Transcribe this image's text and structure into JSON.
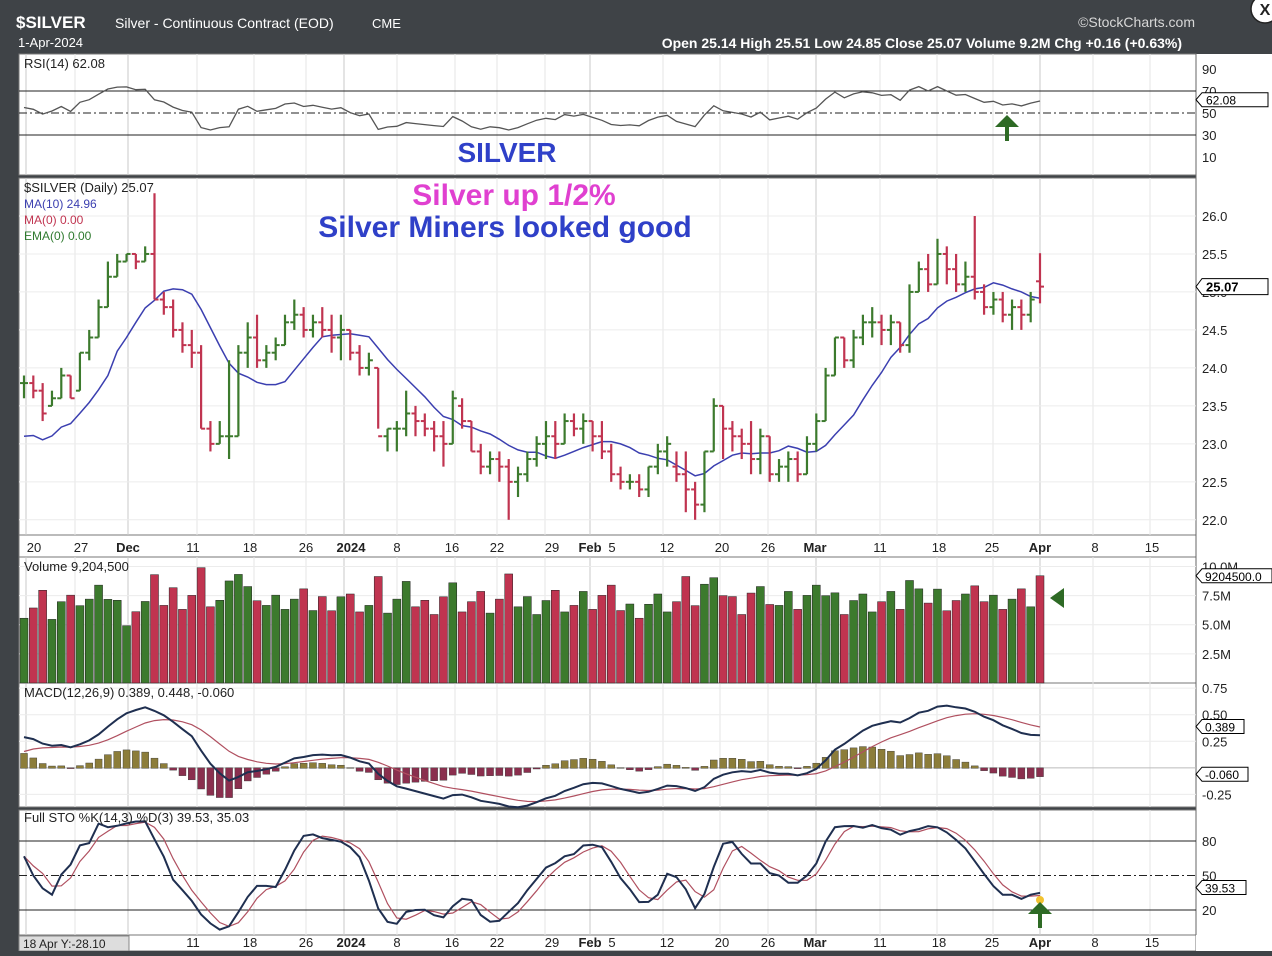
{
  "header": {
    "symbol": "$SILVER",
    "name": "Silver - Continuous Contract (EOD)",
    "exchange": "CME",
    "date": "1-Apr-2024",
    "brand": "©StockCharts.com",
    "ohlc": "Open 25.14  High 25.51  Low 24.85  Close 25.07  Volume 9.2M  Chg +0.16 (+0.63%)",
    "close_button": "X"
  },
  "rsi": {
    "label": "RSI(14) 62.08",
    "value_tag": "62.08",
    "ticks": [
      "90",
      "70",
      "50",
      "30",
      "10"
    ],
    "title_annotation": "SILVER"
  },
  "price": {
    "legend_main": "$SILVER (Daily) 25.07",
    "legend_ma10": "MA(10) 24.96",
    "legend_ma0": "MA(0) 0.00",
    "legend_ema0": "EMA(0) 0.00",
    "annotation_1": "Silver up 1/2%",
    "annotation_2": "Silver Miners looked good",
    "value_tag": "25.07",
    "ticks": [
      "26.0",
      "25.5",
      "25.0",
      "24.5",
      "24.0",
      "23.5",
      "23.0",
      "22.5",
      "22.0"
    ]
  },
  "volume": {
    "label": "Volume 9,204,500",
    "value_tag": "9204500.0",
    "ticks": [
      "10.0M",
      "7.5M",
      "5.0M",
      "2.5M"
    ]
  },
  "macd": {
    "label": "MACD(12,26,9) 0.389, 0.448, -0.060",
    "tag_macd": "0.389",
    "tag_hist": "-0.060",
    "ticks": [
      "0.75",
      "0.50",
      "0.25",
      "-0.25"
    ]
  },
  "sto": {
    "label": "Full STO %K(14,3) %D(3) 39.53, 35.03",
    "value_tag": "39.53",
    "ticks": [
      "80",
      "50",
      "20"
    ],
    "crosshair_readout": "18 Apr Y:-28.10"
  },
  "x_axis": {
    "labels": [
      "20",
      "27",
      "Dec",
      "11",
      "18",
      "26",
      "2024",
      "8",
      "16",
      "22",
      "29",
      "Feb",
      "5",
      "12",
      "20",
      "26",
      "Mar",
      "11",
      "18",
      "25",
      "Apr",
      "8",
      "15"
    ]
  },
  "colors": {
    "up": "#3c7a2d",
    "down": "#c03450",
    "ma": "#3b3fb0",
    "arrow": "#2e6a25",
    "magenta": "#e040d0",
    "blue_text": "#2f40c8"
  },
  "chart_data": {
    "type": "line",
    "symbol": "$SILVER",
    "title": "Silver - Continuous Contract (EOD)",
    "price_ylim": [
      21.8,
      26.5
    ],
    "price_bars": [
      [
        23.8,
        23.9,
        23.6,
        23.8
      ],
      [
        23.8,
        23.9,
        23.6,
        23.7
      ],
      [
        23.7,
        23.8,
        23.3,
        23.4
      ],
      [
        23.5,
        23.7,
        23.5,
        23.6
      ],
      [
        23.6,
        24.0,
        23.6,
        23.9
      ],
      [
        23.9,
        23.9,
        23.6,
        23.6
      ],
      [
        23.7,
        24.2,
        23.7,
        24.2
      ],
      [
        24.2,
        24.5,
        24.1,
        24.4
      ],
      [
        24.4,
        24.9,
        24.4,
        24.8
      ],
      [
        24.8,
        25.4,
        24.8,
        25.2
      ],
      [
        25.2,
        25.5,
        25.2,
        25.4
      ],
      [
        25.4,
        25.5,
        25.4,
        25.5
      ],
      [
        25.5,
        25.5,
        25.3,
        25.4
      ],
      [
        25.4,
        25.6,
        25.4,
        25.5
      ],
      [
        25.5,
        26.3,
        24.9,
        24.9
      ],
      [
        24.9,
        25.0,
        24.7,
        24.8
      ],
      [
        24.8,
        24.9,
        24.4,
        24.5
      ],
      [
        24.5,
        24.6,
        24.2,
        24.3
      ],
      [
        24.3,
        24.5,
        24.0,
        24.2
      ],
      [
        24.2,
        24.3,
        23.2,
        23.2
      ],
      [
        23.2,
        23.3,
        22.9,
        23.0
      ],
      [
        23.0,
        23.3,
        23.0,
        23.1
      ],
      [
        23.1,
        24.1,
        22.8,
        23.1
      ],
      [
        23.1,
        24.3,
        23.1,
        24.2
      ],
      [
        24.2,
        24.6,
        24.0,
        24.4
      ],
      [
        24.4,
        24.7,
        24.0,
        24.1
      ],
      [
        24.1,
        24.3,
        24.0,
        24.2
      ],
      [
        24.2,
        24.4,
        24.1,
        24.3
      ],
      [
        24.3,
        24.7,
        24.3,
        24.6
      ],
      [
        24.6,
        24.9,
        24.5,
        24.7
      ],
      [
        24.7,
        24.8,
        24.4,
        24.5
      ],
      [
        24.5,
        24.7,
        24.4,
        24.6
      ],
      [
        24.6,
        24.8,
        24.4,
        24.5
      ],
      [
        24.5,
        24.7,
        24.2,
        24.4
      ],
      [
        24.4,
        24.7,
        24.1,
        24.5
      ],
      [
        24.5,
        24.5,
        24.1,
        24.2
      ],
      [
        24.2,
        24.3,
        23.9,
        24.0
      ],
      [
        24.0,
        24.2,
        23.9,
        24.1
      ],
      [
        24.0,
        24.0,
        23.2,
        23.1
      ],
      [
        23.1,
        23.2,
        22.9,
        23.2
      ],
      [
        23.2,
        23.3,
        22.9,
        23.2
      ],
      [
        23.2,
        23.7,
        23.1,
        23.4
      ],
      [
        23.4,
        23.5,
        23.1,
        23.3
      ],
      [
        23.3,
        23.4,
        23.1,
        23.2
      ],
      [
        23.2,
        23.3,
        22.9,
        23.1
      ],
      [
        23.1,
        23.3,
        22.7,
        23.0
      ],
      [
        23.0,
        23.7,
        23.0,
        23.6
      ],
      [
        23.5,
        23.6,
        23.2,
        23.3
      ],
      [
        23.3,
        23.3,
        22.9,
        22.9
      ],
      [
        22.9,
        23.0,
        22.6,
        22.7
      ],
      [
        22.7,
        22.9,
        22.6,
        22.8
      ],
      [
        22.8,
        22.9,
        22.5,
        22.7
      ],
      [
        22.7,
        22.8,
        22.0,
        22.5
      ],
      [
        22.5,
        22.7,
        22.3,
        22.6
      ],
      [
        22.6,
        22.9,
        22.5,
        22.8
      ],
      [
        22.8,
        23.1,
        22.7,
        23.0
      ],
      [
        23.0,
        23.3,
        22.8,
        23.1
      ],
      [
        23.1,
        23.3,
        22.8,
        23.0
      ],
      [
        23.0,
        23.4,
        23.0,
        23.3
      ],
      [
        23.3,
        23.4,
        23.1,
        23.2
      ],
      [
        23.2,
        23.4,
        23.0,
        23.3
      ],
      [
        23.3,
        23.3,
        22.9,
        23.1
      ],
      [
        23.1,
        23.3,
        22.8,
        22.9
      ],
      [
        22.9,
        23.0,
        22.5,
        22.6
      ],
      [
        22.6,
        22.7,
        22.4,
        22.5
      ],
      [
        22.5,
        22.6,
        22.4,
        22.5
      ],
      [
        22.5,
        22.6,
        22.3,
        22.4
      ],
      [
        22.4,
        22.7,
        22.3,
        22.7
      ],
      [
        22.7,
        23.0,
        22.6,
        22.9
      ],
      [
        22.9,
        23.1,
        22.7,
        23.0
      ],
      [
        22.7,
        22.9,
        22.5,
        22.6
      ],
      [
        22.6,
        22.9,
        22.1,
        22.4
      ],
      [
        22.4,
        22.5,
        22.0,
        22.2
      ],
      [
        22.2,
        22.9,
        22.1,
        22.9
      ],
      [
        22.9,
        23.6,
        22.9,
        23.5
      ],
      [
        23.5,
        23.5,
        22.8,
        23.2
      ],
      [
        23.2,
        23.3,
        22.9,
        23.1
      ],
      [
        23.1,
        23.2,
        22.8,
        23.0
      ],
      [
        23.0,
        23.3,
        22.6,
        22.8
      ],
      [
        22.8,
        23.2,
        22.6,
        23.1
      ],
      [
        23.1,
        23.1,
        22.5,
        22.6
      ],
      [
        22.6,
        22.8,
        22.5,
        22.7
      ],
      [
        22.7,
        22.9,
        22.5,
        22.8
      ],
      [
        22.8,
        22.9,
        22.5,
        22.6
      ],
      [
        22.6,
        23.1,
        22.6,
        23.0
      ],
      [
        23.0,
        23.4,
        22.9,
        23.3
      ],
      [
        23.3,
        24.0,
        23.3,
        23.9
      ],
      [
        23.9,
        24.4,
        23.9,
        24.4
      ],
      [
        24.4,
        24.4,
        24.0,
        24.1
      ],
      [
        24.1,
        24.5,
        24.0,
        24.4
      ],
      [
        24.4,
        24.7,
        24.3,
        24.6
      ],
      [
        24.6,
        24.8,
        24.4,
        24.6
      ],
      [
        24.6,
        24.7,
        24.3,
        24.5
      ],
      [
        24.5,
        24.7,
        24.3,
        24.6
      ],
      [
        24.6,
        24.6,
        24.2,
        24.3
      ],
      [
        24.3,
        25.1,
        24.2,
        25.0
      ],
      [
        25.0,
        25.4,
        25.0,
        25.3
      ],
      [
        25.3,
        25.5,
        25.0,
        25.1
      ],
      [
        25.1,
        25.7,
        25.1,
        25.5
      ],
      [
        25.5,
        25.6,
        25.1,
        25.3
      ],
      [
        25.3,
        25.5,
        25.0,
        25.1
      ],
      [
        25.1,
        25.4,
        25.0,
        25.2
      ],
      [
        25.2,
        26.0,
        24.9,
        25.0
      ],
      [
        25.0,
        25.1,
        24.7,
        24.8
      ],
      [
        24.8,
        25.0,
        24.7,
        24.9
      ],
      [
        24.9,
        25.0,
        24.6,
        24.7
      ],
      [
        24.7,
        24.9,
        24.5,
        24.8
      ],
      [
        24.8,
        24.9,
        24.5,
        24.7
      ],
      [
        24.7,
        25.0,
        24.6,
        24.9
      ],
      [
        25.14,
        25.51,
        24.85,
        25.07
      ]
    ],
    "ma10_last": 24.96,
    "volume_last": 9204500,
    "rsi_last": 62.08,
    "macd_last": [
      0.389,
      0.448,
      -0.06
    ],
    "sto_last": [
      39.53,
      35.03
    ]
  }
}
